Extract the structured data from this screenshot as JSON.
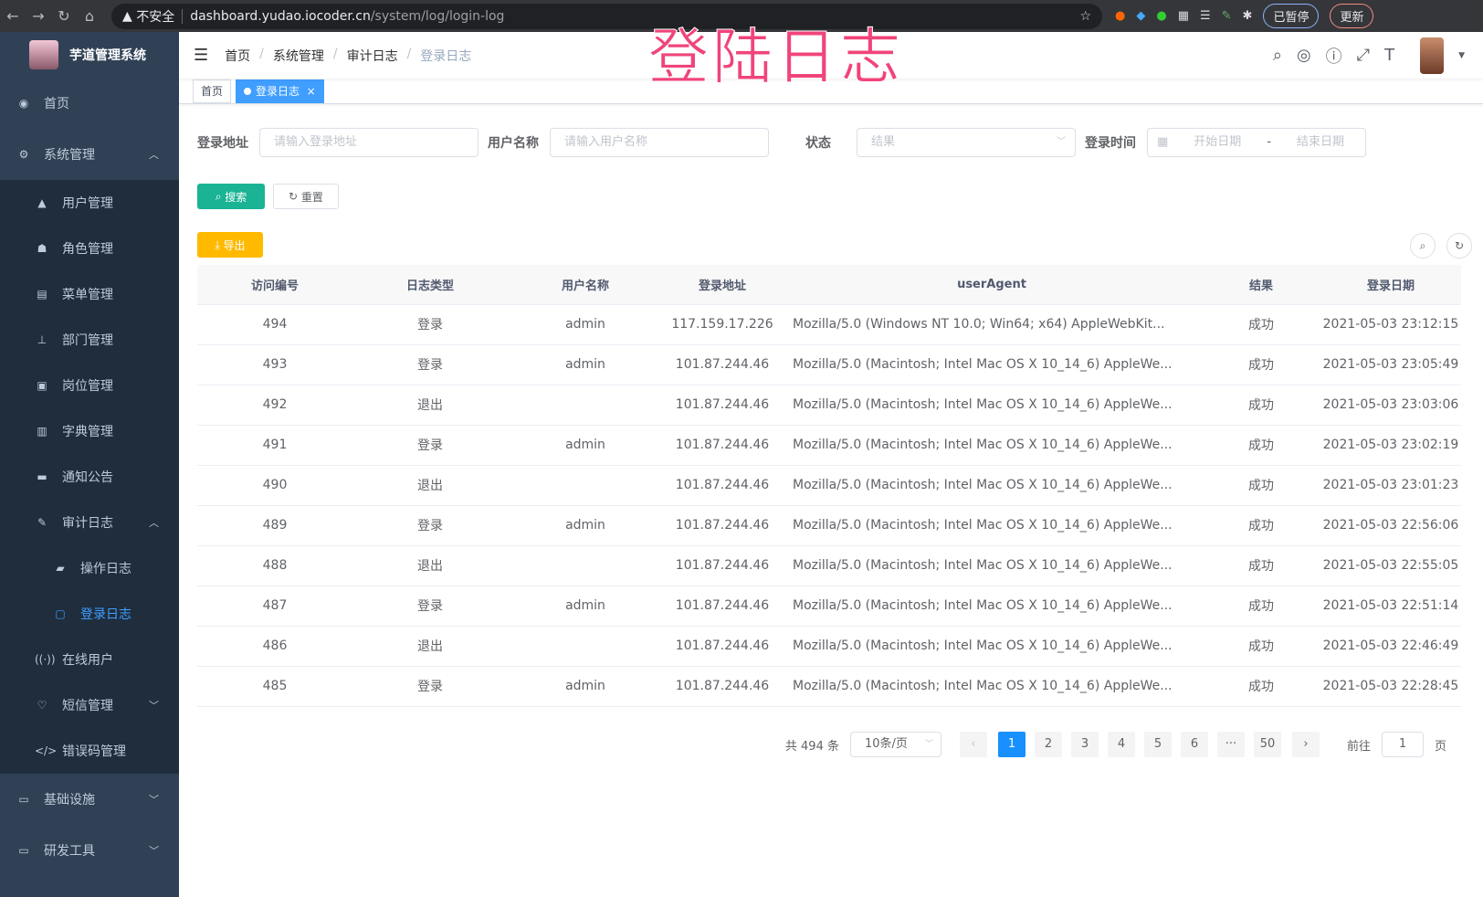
{
  "browser": {
    "insecure": "不安全",
    "host": "dashboard.yudao.iocoder.cn",
    "path": "/system/log/login-log",
    "paused": "已暂停",
    "update": "更新"
  },
  "sidebar": {
    "title": "芋道管理系统",
    "items": [
      {
        "label": "首页",
        "icon": "dashboard-icon"
      },
      {
        "label": "系统管理",
        "icon": "gear-icon",
        "open": true,
        "children": [
          {
            "label": "用户管理",
            "icon": "user-icon"
          },
          {
            "label": "角色管理",
            "icon": "peoples-icon"
          },
          {
            "label": "菜单管理",
            "icon": "tree-table-icon"
          },
          {
            "label": "部门管理",
            "icon": "tree-icon"
          },
          {
            "label": "岗位管理",
            "icon": "post-icon"
          },
          {
            "label": "字典管理",
            "icon": "dict-icon"
          },
          {
            "label": "通知公告",
            "icon": "message-icon"
          },
          {
            "label": "审计日志",
            "icon": "log-icon",
            "open": true,
            "children": [
              {
                "label": "操作日志",
                "icon": "form-icon"
              },
              {
                "label": "登录日志",
                "icon": "logininfor-icon",
                "active": true
              }
            ]
          },
          {
            "label": "在线用户",
            "icon": "online-icon"
          },
          {
            "label": "短信管理",
            "icon": "sms-icon"
          },
          {
            "label": "错误码管理",
            "icon": "code-icon"
          }
        ]
      },
      {
        "label": "基础设施",
        "icon": "monitor-icon"
      },
      {
        "label": "研发工具",
        "icon": "tool-icon"
      }
    ]
  },
  "breadcrumb": [
    "首页",
    "系统管理",
    "审计日志",
    "登录日志"
  ],
  "overlay_title": "登陆日志",
  "tags": [
    {
      "label": "首页"
    },
    {
      "label": "登录日志",
      "active": true
    }
  ],
  "filters": {
    "ip_label": "登录地址",
    "ip_placeholder": "请输入登录地址",
    "user_label": "用户名称",
    "user_placeholder": "请输入用户名称",
    "status_label": "状态",
    "status_placeholder": "结果",
    "time_label": "登录时间",
    "start_placeholder": "开始日期",
    "end_placeholder": "结束日期",
    "range_sep": "-"
  },
  "buttons": {
    "search": "搜索",
    "reset": "重置",
    "export": "导出"
  },
  "table": {
    "columns": [
      "访问编号",
      "日志类型",
      "用户名称",
      "登录地址",
      "userAgent",
      "结果",
      "登录日期"
    ],
    "rows": [
      [
        "494",
        "登录",
        "admin",
        "117.159.17.226",
        "Mozilla/5.0 (Windows NT 10.0; Win64; x64) AppleWebKit...",
        "成功",
        "2021-05-03 23:12:15"
      ],
      [
        "493",
        "登录",
        "admin",
        "101.87.244.46",
        "Mozilla/5.0 (Macintosh; Intel Mac OS X 10_14_6) AppleWe...",
        "成功",
        "2021-05-03 23:05:49"
      ],
      [
        "492",
        "退出",
        "",
        "101.87.244.46",
        "Mozilla/5.0 (Macintosh; Intel Mac OS X 10_14_6) AppleWe...",
        "成功",
        "2021-05-03 23:03:06"
      ],
      [
        "491",
        "登录",
        "admin",
        "101.87.244.46",
        "Mozilla/5.0 (Macintosh; Intel Mac OS X 10_14_6) AppleWe...",
        "成功",
        "2021-05-03 23:02:19"
      ],
      [
        "490",
        "退出",
        "",
        "101.87.244.46",
        "Mozilla/5.0 (Macintosh; Intel Mac OS X 10_14_6) AppleWe...",
        "成功",
        "2021-05-03 23:01:23"
      ],
      [
        "489",
        "登录",
        "admin",
        "101.87.244.46",
        "Mozilla/5.0 (Macintosh; Intel Mac OS X 10_14_6) AppleWe...",
        "成功",
        "2021-05-03 22:56:06"
      ],
      [
        "488",
        "退出",
        "",
        "101.87.244.46",
        "Mozilla/5.0 (Macintosh; Intel Mac OS X 10_14_6) AppleWe...",
        "成功",
        "2021-05-03 22:55:05"
      ],
      [
        "487",
        "登录",
        "admin",
        "101.87.244.46",
        "Mozilla/5.0 (Macintosh; Intel Mac OS X 10_14_6) AppleWe...",
        "成功",
        "2021-05-03 22:51:14"
      ],
      [
        "486",
        "退出",
        "",
        "101.87.244.46",
        "Mozilla/5.0 (Macintosh; Intel Mac OS X 10_14_6) AppleWe...",
        "成功",
        "2021-05-03 22:46:49"
      ],
      [
        "485",
        "登录",
        "admin",
        "101.87.244.46",
        "Mozilla/5.0 (Macintosh; Intel Mac OS X 10_14_6) AppleWe...",
        "成功",
        "2021-05-03 22:28:45"
      ]
    ]
  },
  "pagination": {
    "total": "共 494 条",
    "page_size": "10条/页",
    "pages": [
      "1",
      "2",
      "3",
      "4",
      "5",
      "6",
      "···",
      "50"
    ],
    "current": "1",
    "goto_prefix": "前往",
    "goto_value": "1",
    "goto_suffix": "页"
  },
  "colors": {
    "sidebar": "#304156",
    "submenu": "#1f2d3d",
    "primary": "#1890ff",
    "search": "#1ab394",
    "export": "#ffba00",
    "overlay": "#f0447a"
  }
}
